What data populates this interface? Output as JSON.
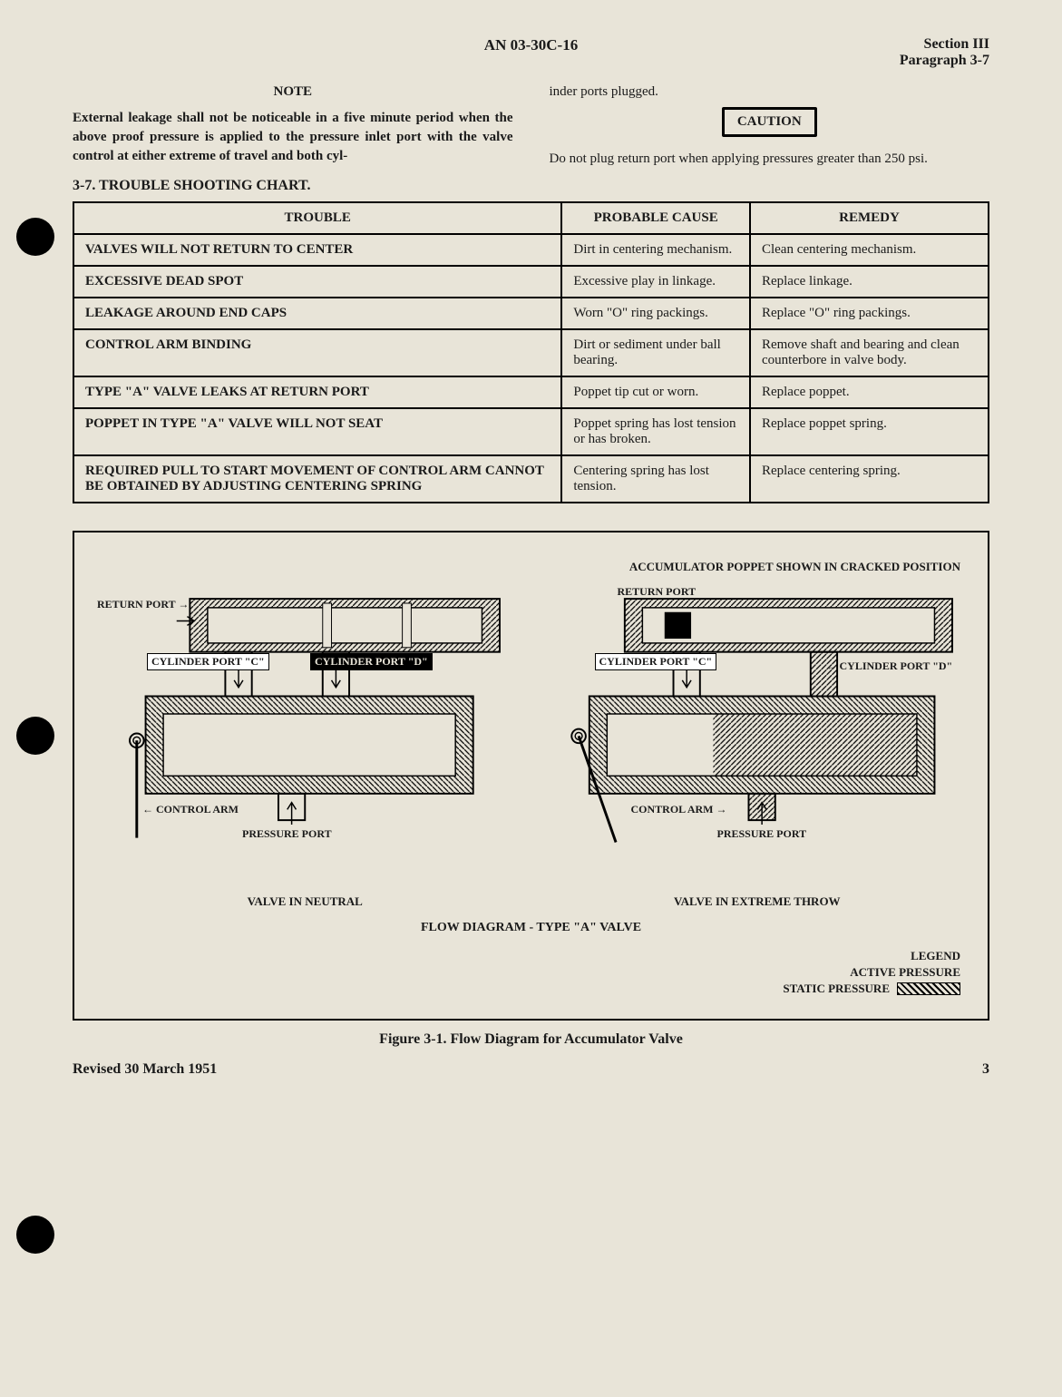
{
  "header": {
    "doc_number": "AN 03-30C-16",
    "section": "Section III",
    "paragraph": "Paragraph 3-7"
  },
  "left_column": {
    "note_heading": "NOTE",
    "note_body": "External leakage shall not be noticeable in a five minute period when the above proof pressure is applied to the pressure inlet port with the valve control at either extreme of travel and both cyl-"
  },
  "right_column": {
    "continuation": "inder ports plugged.",
    "caution_label": "CAUTION",
    "caution_body": "Do not plug return port when applying pressures greater than 250 psi."
  },
  "chart_title": "3-7.  TROUBLE SHOOTING CHART.",
  "table": {
    "headers": [
      "TROUBLE",
      "PROBABLE CAUSE",
      "REMEDY"
    ],
    "rows": [
      [
        "VALVES WILL NOT RETURN TO CENTER",
        "Dirt in centering mechanism.",
        "Clean centering mechanism."
      ],
      [
        "EXCESSIVE DEAD SPOT",
        "Excessive play in linkage.",
        "Replace linkage."
      ],
      [
        "LEAKAGE AROUND END CAPS",
        "Worn \"O\" ring packings.",
        "Replace \"O\" ring packings."
      ],
      [
        "CONTROL ARM BINDING",
        "Dirt or sediment under ball bearing.",
        "Remove shaft and bearing and clean counterbore in valve body."
      ],
      [
        "TYPE \"A\" VALVE LEAKS AT RETURN PORT",
        "Poppet tip cut or worn.",
        "Replace poppet."
      ],
      [
        "POPPET IN TYPE \"A\" VALVE WILL NOT SEAT",
        "Poppet spring has lost tension or has broken.",
        "Replace poppet spring."
      ],
      [
        "REQUIRED PULL TO START MOVEMENT OF CONTROL ARM CANNOT BE OBTAINED BY ADJUSTING CENTERING SPRING",
        "Centering spring has lost tension.",
        "Replace centering spring."
      ]
    ]
  },
  "figure": {
    "accumulator_label": "ACCUMULATOR POPPET SHOWN IN CRACKED POSITION",
    "left": {
      "return_port": "RETURN PORT",
      "cyl_c": "CYLINDER PORT \"C\"",
      "cyl_d": "CYLINDER PORT \"D\"",
      "control_arm": "CONTROL ARM",
      "pressure_port": "PRESSURE PORT",
      "caption": "VALVE IN NEUTRAL"
    },
    "right": {
      "return_port": "RETURN PORT",
      "cyl_c": "CYLINDER PORT \"C\"",
      "cyl_d": "CYLINDER PORT \"D\"",
      "control_arm": "CONTROL ARM",
      "pressure_port": "PRESSURE PORT",
      "caption": "VALVE IN EXTREME THROW"
    },
    "flow_title": "FLOW DIAGRAM - TYPE \"A\" VALVE",
    "legend": {
      "title": "LEGEND",
      "active": "ACTIVE PRESSURE",
      "static": "STATIC PRESSURE"
    },
    "caption": "Figure 3-1.  Flow Diagram for Accumulator Valve"
  },
  "footer": {
    "revised": "Revised 30 March 1951",
    "page": "3"
  },
  "colors": {
    "page_bg": "#e8e4d8",
    "ink": "#1a1a1a",
    "border": "#000000"
  }
}
